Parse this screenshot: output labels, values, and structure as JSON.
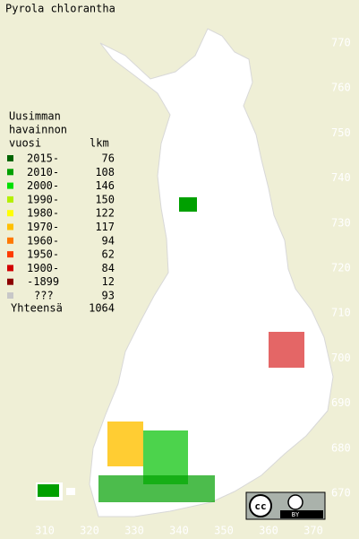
{
  "title": "Pyrola chlorantha",
  "legend": {
    "heading": [
      "Uusimman",
      "havainnon"
    ],
    "period_header": "vuosi",
    "count_header": "lkm",
    "rows": [
      {
        "label": "2015-",
        "count": 76,
        "color": "#006400"
      },
      {
        "label": "2010-",
        "count": 108,
        "color": "#00a000"
      },
      {
        "label": "2000-",
        "count": 146,
        "color": "#00e000"
      },
      {
        "label": "1990-",
        "count": 150,
        "color": "#b4f000"
      },
      {
        "label": "1980-",
        "count": 122,
        "color": "#ffff00"
      },
      {
        "label": "1970-",
        "count": 117,
        "color": "#ffc000"
      },
      {
        "label": "1960-",
        "count": 94,
        "color": "#ff7800"
      },
      {
        "label": "1950-",
        "count": 62,
        "color": "#ff3c00"
      },
      {
        "label": "1900-",
        "count": 84,
        "color": "#d20000"
      },
      {
        "label": "-1899",
        "count": 12,
        "color": "#8c0000"
      },
      {
        "label": "???",
        "count": 93,
        "color": "#c8c8c8"
      }
    ],
    "total_label": "Yhteensä",
    "total": 1064
  },
  "map": {
    "yticks": [
      770,
      760,
      750,
      740,
      730,
      720,
      710,
      700,
      690,
      680,
      670
    ],
    "xticks": [
      310,
      320,
      330,
      340,
      350,
      360,
      370
    ]
  },
  "badge": {
    "cc": "cc",
    "by": "BY"
  }
}
